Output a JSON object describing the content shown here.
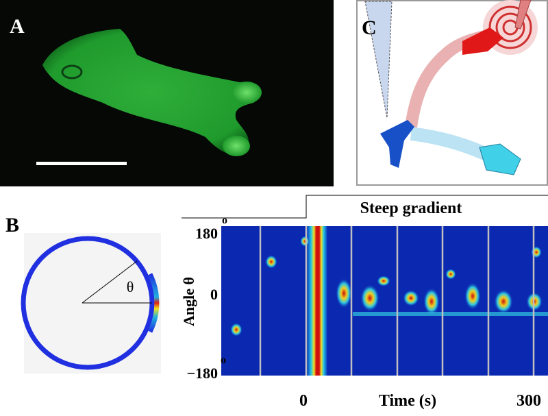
{
  "panel_a": {
    "label": "A"
  },
  "panel_b": {
    "label": "B",
    "circle_angle_label": "θ"
  },
  "panel_c": {
    "label": "C"
  },
  "kymograph": {
    "title": "Steep gradient",
    "y_axis_label": "Angle  θ",
    "y_ticks": [
      {
        "text": "180",
        "sup": "o"
      },
      {
        "text": "0"
      },
      {
        "text": "−180",
        "sup": "o"
      }
    ],
    "x_ticks": [
      "0",
      "300"
    ],
    "x_axis_label": "Time (s)"
  }
}
